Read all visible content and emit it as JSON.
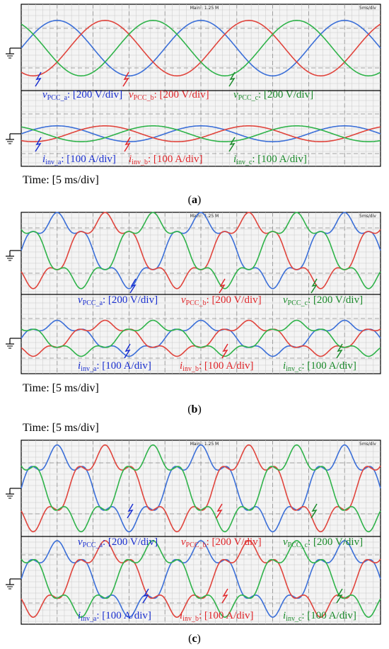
{
  "colors": {
    "phase_a": "#3b6fd8",
    "phase_b": "#e0443c",
    "phase_c": "#2fb34a",
    "label_a": "#1a2fd0",
    "label_b": "#e0262a",
    "label_c": "#1a8a2a"
  },
  "scope": {
    "header_center": "Main : 1.25 M",
    "header_right": "5ms/div"
  },
  "time_label": "Time: [5 ms/div]",
  "panels": [
    {
      "caption_letter": "a",
      "voltage_labels": [
        {
          "sym": "v",
          "sub": "PCC_a",
          "scale": ": [200 V/div]"
        },
        {
          "sym": "v",
          "sub": "PCC_b",
          "scale": ": [200 V/div]"
        },
        {
          "sym": "v",
          "sub": "PCC_c",
          "scale": ": [200 V/div]"
        }
      ],
      "current_labels": [
        {
          "sym": "i",
          "sub": "inv_a",
          "scale": ": [100 A/div]"
        },
        {
          "sym": "i",
          "sub": "inv_b",
          "scale": ": [100 A/div]"
        },
        {
          "sym": "i",
          "sub": "inv_c",
          "scale": ": [100 A/div]"
        }
      ]
    },
    {
      "caption_letter": "b",
      "voltage_labels": [
        {
          "sym": "v",
          "sub": "PCC_a",
          "scale": ": [200 V/div]"
        },
        {
          "sym": "v",
          "sub": "PCC_b",
          "scale": ": [200 V/div]"
        },
        {
          "sym": "v",
          "sub": "PCC_c",
          "scale": ": [200 V/div]"
        }
      ],
      "current_labels": [
        {
          "sym": "i",
          "sub": "inv_a",
          "scale": ": [100 A/div]"
        },
        {
          "sym": "i",
          "sub": "inv_b",
          "scale": ": [100 A/div]"
        },
        {
          "sym": "i",
          "sub": "inv_c",
          "scale": ": [100 A/div]"
        }
      ]
    },
    {
      "caption_letter": "c",
      "voltage_labels": [
        {
          "sym": "v",
          "sub": "PCC_a",
          "scale": ": [200 V/div]"
        },
        {
          "sym": "v",
          "sub": "PCC_b",
          "scale": ": [200 V/div]"
        },
        {
          "sym": "v",
          "sub": "PCC_c",
          "scale": ": [200 V/div]"
        }
      ],
      "current_labels": [
        {
          "sym": "i",
          "sub": "inv_a",
          "scale": ": [100 A/div]"
        },
        {
          "sym": "i",
          "sub": "inv_b",
          "scale": ": [100 A/div]"
        },
        {
          "sym": "i",
          "sub": "inv_c",
          "scale": ": [100 A/div]"
        }
      ]
    }
  ],
  "chart_data": [
    {
      "type": "line",
      "x_unit": "ms",
      "x_range": [
        0,
        50
      ],
      "series": [
        {
          "name": "vPCC_a",
          "shape": "sinusoid",
          "amplitude_div": 1.4,
          "period_ms": 20,
          "phase_deg": 0
        },
        {
          "name": "vPCC_b",
          "shape": "sinusoid",
          "amplitude_div": 1.4,
          "period_ms": 20,
          "phase_deg": -120
        },
        {
          "name": "vPCC_c",
          "shape": "sinusoid",
          "amplitude_div": 1.4,
          "period_ms": 20,
          "phase_deg": 120
        },
        {
          "name": "iinv_a",
          "shape": "sinusoid",
          "amplitude_div": 0.4,
          "period_ms": 20,
          "phase_deg": 0
        },
        {
          "name": "iinv_b",
          "shape": "sinusoid",
          "amplitude_div": 0.4,
          "period_ms": 20,
          "phase_deg": -120
        },
        {
          "name": "iinv_c",
          "shape": "sinusoid",
          "amplitude_div": 0.4,
          "period_ms": 20,
          "phase_deg": 120
        }
      ]
    },
    {
      "type": "line",
      "x_unit": "ms",
      "x_range": [
        0,
        50
      ],
      "series": [
        {
          "name": "vPCC_a",
          "shape": "distorted",
          "amplitude_div": 1.5,
          "period_ms": 20,
          "harmonic5": 0.22
        },
        {
          "name": "vPCC_b",
          "shape": "distorted",
          "amplitude_div": 1.5,
          "period_ms": 20,
          "harmonic5": 0.22
        },
        {
          "name": "vPCC_c",
          "shape": "distorted",
          "amplitude_div": 1.5,
          "period_ms": 20,
          "harmonic5": 0.22
        },
        {
          "name": "iinv_a",
          "shape": "distorted",
          "amplitude_div": 0.8,
          "period_ms": 20,
          "harmonic5": 0.25
        },
        {
          "name": "iinv_b",
          "shape": "distorted",
          "amplitude_div": 0.8,
          "period_ms": 20,
          "harmonic5": 0.25
        },
        {
          "name": "iinv_c",
          "shape": "distorted",
          "amplitude_div": 0.8,
          "period_ms": 20,
          "harmonic5": 0.25
        }
      ]
    },
    {
      "type": "line",
      "x_unit": "ms",
      "x_range": [
        0,
        50
      ],
      "series": [
        {
          "name": "vPCC_a",
          "shape": "distorted",
          "amplitude_div": 1.5,
          "period_ms": 20,
          "harmonic5": 0.25
        },
        {
          "name": "vPCC_b",
          "shape": "distorted",
          "amplitude_div": 1.5,
          "period_ms": 20,
          "harmonic5": 0.25
        },
        {
          "name": "vPCC_c",
          "shape": "distorted",
          "amplitude_div": 1.5,
          "period_ms": 20,
          "harmonic5": 0.25
        },
        {
          "name": "iinv_a",
          "shape": "distorted",
          "amplitude_div": 1.4,
          "period_ms": 20,
          "harmonic5": 0.25
        },
        {
          "name": "iinv_b",
          "shape": "distorted",
          "amplitude_div": 1.4,
          "period_ms": 20,
          "harmonic5": 0.25
        },
        {
          "name": "iinv_c",
          "shape": "distorted",
          "amplitude_div": 1.4,
          "period_ms": 20,
          "harmonic5": 0.25
        }
      ]
    }
  ]
}
